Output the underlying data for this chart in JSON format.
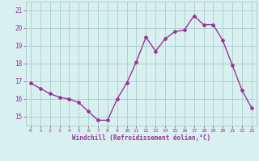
{
  "x": [
    0,
    1,
    2,
    3,
    4,
    5,
    6,
    7,
    8,
    9,
    10,
    11,
    12,
    13,
    14,
    15,
    16,
    17,
    18,
    19,
    20,
    21,
    22,
    23
  ],
  "y": [
    16.9,
    16.6,
    16.3,
    16.1,
    16.0,
    15.8,
    15.3,
    14.8,
    14.8,
    16.0,
    16.9,
    18.1,
    19.5,
    18.7,
    19.4,
    19.8,
    19.9,
    20.7,
    20.2,
    20.2,
    19.3,
    17.9,
    16.5,
    15.5
  ],
  "line_color": "#993399",
  "marker": "D",
  "marker_size": 2.0,
  "line_width": 1.0,
  "bg_color": "#d9f0f0",
  "grid_color": "#aacccc",
  "xlabel": "Windchill (Refroidissement éolien,°C)",
  "xlabel_color": "#993399",
  "tick_color": "#993399",
  "ylim": [
    14.5,
    21.5
  ],
  "xlim": [
    -0.5,
    23.5
  ],
  "yticks": [
    15,
    16,
    17,
    18,
    19,
    20,
    21
  ],
  "xticks": [
    0,
    1,
    2,
    3,
    4,
    5,
    6,
    7,
    8,
    9,
    10,
    11,
    12,
    13,
    14,
    15,
    16,
    17,
    18,
    19,
    20,
    21,
    22,
    23
  ],
  "figsize": [
    3.2,
    2.0
  ],
  "dpi": 100
}
